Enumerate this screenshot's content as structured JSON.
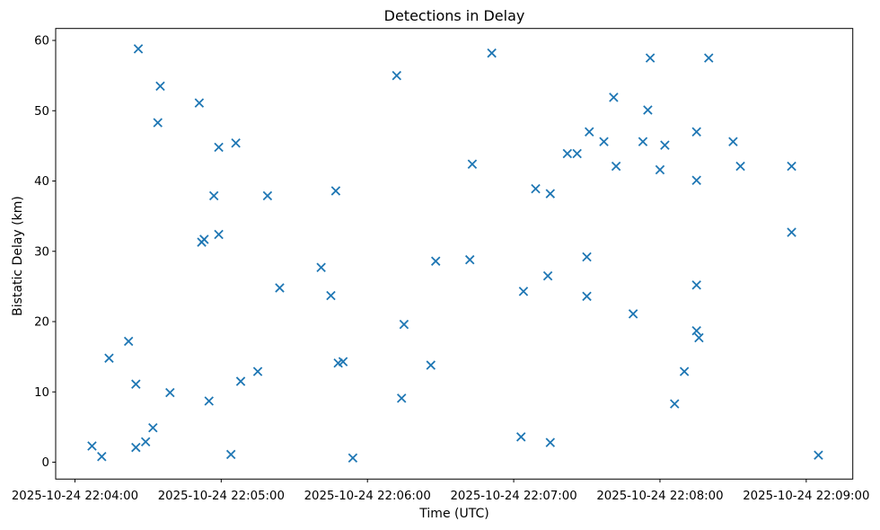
{
  "figure": {
    "colors": {
      "marker": "#1f77b4",
      "axis": "#000000",
      "background": "#ffffff"
    }
  },
  "chart_data": {
    "type": "scatter",
    "title": "Detections in Delay",
    "marker": "x",
    "legend": "none",
    "grid": false,
    "x_axis": {
      "label": "Time (UTC)",
      "tick_labels": [
        "2025-10-24 22:04:00",
        "2025-10-24 22:05:00",
        "2025-10-24 22:06:00",
        "2025-10-24 22:07:00",
        "2025-10-24 22:08:00",
        "2025-10-24 22:09:00"
      ],
      "tick_seconds": [
        0,
        60,
        120,
        180,
        240,
        300
      ],
      "xlim_seconds": [
        -7.9,
        319.1
      ]
    },
    "y_axis": {
      "label": "Bistatic Delay (km)",
      "ticks": [
        0,
        10,
        20,
        30,
        40,
        50,
        60
      ],
      "ylim": [
        -2.4,
        61.7
      ]
    },
    "points": [
      {
        "time": "2025-10-24 22:04:07",
        "delay_km": 2.3
      },
      {
        "time": "2025-10-24 22:04:11",
        "delay_km": 0.8
      },
      {
        "time": "2025-10-24 22:04:14",
        "delay_km": 14.8
      },
      {
        "time": "2025-10-24 22:04:22",
        "delay_km": 17.2
      },
      {
        "time": "2025-10-24 22:04:25",
        "delay_km": 11.1
      },
      {
        "time": "2025-10-24 22:04:25",
        "delay_km": 2.1
      },
      {
        "time": "2025-10-24 22:04:26",
        "delay_km": 58.8
      },
      {
        "time": "2025-10-24 22:04:29",
        "delay_km": 2.9
      },
      {
        "time": "2025-10-24 22:04:32",
        "delay_km": 4.9
      },
      {
        "time": "2025-10-24 22:04:34",
        "delay_km": 48.3
      },
      {
        "time": "2025-10-24 22:04:35",
        "delay_km": 53.5
      },
      {
        "time": "2025-10-24 22:04:39",
        "delay_km": 9.9
      },
      {
        "time": "2025-10-24 22:04:51",
        "delay_km": 51.1
      },
      {
        "time": "2025-10-24 22:04:52",
        "delay_km": 31.3
      },
      {
        "time": "2025-10-24 22:04:53",
        "delay_km": 31.7
      },
      {
        "time": "2025-10-24 22:04:55",
        "delay_km": 8.7
      },
      {
        "time": "2025-10-24 22:04:57",
        "delay_km": 37.9
      },
      {
        "time": "2025-10-24 22:04:59",
        "delay_km": 44.8
      },
      {
        "time": "2025-10-24 22:04:59",
        "delay_km": 32.4
      },
      {
        "time": "2025-10-24 22:05:04",
        "delay_km": 1.1
      },
      {
        "time": "2025-10-24 22:05:06",
        "delay_km": 45.4
      },
      {
        "time": "2025-10-24 22:05:08",
        "delay_km": 11.5
      },
      {
        "time": "2025-10-24 22:05:15",
        "delay_km": 12.9
      },
      {
        "time": "2025-10-24 22:05:19",
        "delay_km": 37.9
      },
      {
        "time": "2025-10-24 22:05:24",
        "delay_km": 24.8
      },
      {
        "time": "2025-10-24 22:05:41",
        "delay_km": 27.7
      },
      {
        "time": "2025-10-24 22:05:45",
        "delay_km": 23.7
      },
      {
        "time": "2025-10-24 22:05:47",
        "delay_km": 38.6
      },
      {
        "time": "2025-10-24 22:05:48",
        "delay_km": 14.1
      },
      {
        "time": "2025-10-24 22:05:50",
        "delay_km": 14.3
      },
      {
        "time": "2025-10-24 22:05:54",
        "delay_km": 0.6
      },
      {
        "time": "2025-10-24 22:06:12",
        "delay_km": 55.0
      },
      {
        "time": "2025-10-24 22:06:14",
        "delay_km": 9.1
      },
      {
        "time": "2025-10-24 22:06:15",
        "delay_km": 19.6
      },
      {
        "time": "2025-10-24 22:06:26",
        "delay_km": 13.8
      },
      {
        "time": "2025-10-24 22:06:28",
        "delay_km": 28.6
      },
      {
        "time": "2025-10-24 22:06:42",
        "delay_km": 28.8
      },
      {
        "time": "2025-10-24 22:06:43",
        "delay_km": 42.4
      },
      {
        "time": "2025-10-24 22:06:51",
        "delay_km": 58.2
      },
      {
        "time": "2025-10-24 22:07:03",
        "delay_km": 3.6
      },
      {
        "time": "2025-10-24 22:07:04",
        "delay_km": 24.3
      },
      {
        "time": "2025-10-24 22:07:09",
        "delay_km": 38.9
      },
      {
        "time": "2025-10-24 22:07:14",
        "delay_km": 26.5
      },
      {
        "time": "2025-10-24 22:07:15",
        "delay_km": 38.2
      },
      {
        "time": "2025-10-24 22:07:15",
        "delay_km": 2.8
      },
      {
        "time": "2025-10-24 22:07:22",
        "delay_km": 43.9
      },
      {
        "time": "2025-10-24 22:07:26",
        "delay_km": 43.9
      },
      {
        "time": "2025-10-24 22:07:30",
        "delay_km": 29.2
      },
      {
        "time": "2025-10-24 22:07:30",
        "delay_km": 23.6
      },
      {
        "time": "2025-10-24 22:07:31",
        "delay_km": 47.0
      },
      {
        "time": "2025-10-24 22:07:37",
        "delay_km": 45.6
      },
      {
        "time": "2025-10-24 22:07:41",
        "delay_km": 51.9
      },
      {
        "time": "2025-10-24 22:07:42",
        "delay_km": 42.1
      },
      {
        "time": "2025-10-24 22:07:49",
        "delay_km": 21.1
      },
      {
        "time": "2025-10-24 22:07:53",
        "delay_km": 45.6
      },
      {
        "time": "2025-10-24 22:07:55",
        "delay_km": 50.1
      },
      {
        "time": "2025-10-24 22:07:56",
        "delay_km": 57.5
      },
      {
        "time": "2025-10-24 22:08:00",
        "delay_km": 41.6
      },
      {
        "time": "2025-10-24 22:08:02",
        "delay_km": 45.1
      },
      {
        "time": "2025-10-24 22:08:06",
        "delay_km": 8.3
      },
      {
        "time": "2025-10-24 22:08:10",
        "delay_km": 12.9
      },
      {
        "time": "2025-10-24 22:08:15",
        "delay_km": 47.0
      },
      {
        "time": "2025-10-24 22:08:15",
        "delay_km": 40.1
      },
      {
        "time": "2025-10-24 22:08:15",
        "delay_km": 25.2
      },
      {
        "time": "2025-10-24 22:08:15",
        "delay_km": 18.7
      },
      {
        "time": "2025-10-24 22:08:16",
        "delay_km": 17.7
      },
      {
        "time": "2025-10-24 22:08:20",
        "delay_km": 57.5
      },
      {
        "time": "2025-10-24 22:08:30",
        "delay_km": 45.6
      },
      {
        "time": "2025-10-24 22:08:33",
        "delay_km": 42.1
      },
      {
        "time": "2025-10-24 22:08:54",
        "delay_km": 42.1
      },
      {
        "time": "2025-10-24 22:08:54",
        "delay_km": 32.7
      },
      {
        "time": "2025-10-24 22:09:05",
        "delay_km": 1.0
      }
    ]
  }
}
